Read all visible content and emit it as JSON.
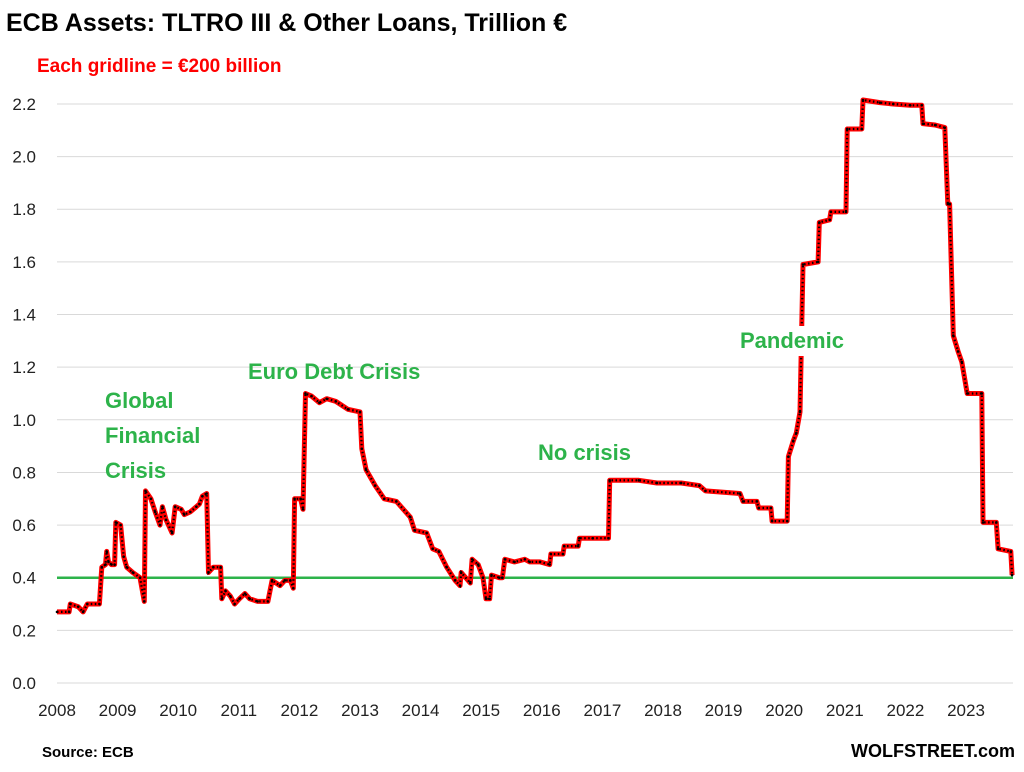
{
  "chart_data": {
    "type": "line",
    "title": "ECB Assets: TLTRO III & Other Loans, Trillion €",
    "subtitle": "Each gridline = €200 billion",
    "xlabel": "",
    "ylabel": "",
    "xlim": [
      2008,
      2023.8
    ],
    "ylim": [
      0,
      2.2
    ],
    "y_ticks": [
      "0.0",
      "0.2",
      "0.4",
      "0.6",
      "0.8",
      "1.0",
      "1.2",
      "1.4",
      "1.6",
      "1.8",
      "2.0",
      "2.2"
    ],
    "x_ticks": [
      "2008",
      "2009",
      "2010",
      "2011",
      "2012",
      "2013",
      "2014",
      "2015",
      "2016",
      "2017",
      "2018",
      "2019",
      "2020",
      "2021",
      "2022",
      "2023"
    ],
    "grid": true,
    "legend": "none",
    "colors": {
      "series": "#ff0000",
      "markers": "#000000",
      "reference_line": "#2db34a",
      "annotation": "#2db34a",
      "subtitle": "#ff0000"
    },
    "reference_line": 0.4,
    "series": [
      {
        "points": [
          [
            2008.0,
            0.27
          ],
          [
            2008.2,
            0.27
          ],
          [
            2008.22,
            0.3
          ],
          [
            2008.35,
            0.29
          ],
          [
            2008.43,
            0.27
          ],
          [
            2008.5,
            0.3
          ],
          [
            2008.7,
            0.3
          ],
          [
            2008.74,
            0.44
          ],
          [
            2008.8,
            0.45
          ],
          [
            2008.82,
            0.5
          ],
          [
            2008.85,
            0.46
          ],
          [
            2008.9,
            0.45
          ],
          [
            2008.95,
            0.45
          ],
          [
            2008.97,
            0.61
          ],
          [
            2009.05,
            0.6
          ],
          [
            2009.1,
            0.48
          ],
          [
            2009.15,
            0.44
          ],
          [
            2009.25,
            0.42
          ],
          [
            2009.37,
            0.4
          ],
          [
            2009.44,
            0.31
          ],
          [
            2009.46,
            0.73
          ],
          [
            2009.55,
            0.7
          ],
          [
            2009.62,
            0.65
          ],
          [
            2009.7,
            0.6
          ],
          [
            2009.74,
            0.67
          ],
          [
            2009.8,
            0.62
          ],
          [
            2009.9,
            0.57
          ],
          [
            2009.95,
            0.67
          ],
          [
            2010.05,
            0.66
          ],
          [
            2010.1,
            0.64
          ],
          [
            2010.2,
            0.65
          ],
          [
            2010.3,
            0.67
          ],
          [
            2010.35,
            0.68
          ],
          [
            2010.4,
            0.71
          ],
          [
            2010.47,
            0.72
          ],
          [
            2010.5,
            0.42
          ],
          [
            2010.58,
            0.44
          ],
          [
            2010.7,
            0.44
          ],
          [
            2010.72,
            0.32
          ],
          [
            2010.78,
            0.35
          ],
          [
            2010.86,
            0.33
          ],
          [
            2010.93,
            0.3
          ],
          [
            2011.01,
            0.32
          ],
          [
            2011.1,
            0.34
          ],
          [
            2011.18,
            0.32
          ],
          [
            2011.31,
            0.31
          ],
          [
            2011.48,
            0.31
          ],
          [
            2011.55,
            0.39
          ],
          [
            2011.68,
            0.37
          ],
          [
            2011.76,
            0.39
          ],
          [
            2011.85,
            0.39
          ],
          [
            2011.9,
            0.36
          ],
          [
            2011.92,
            0.7
          ],
          [
            2012.02,
            0.7
          ],
          [
            2012.06,
            0.66
          ],
          [
            2012.1,
            1.1
          ],
          [
            2012.2,
            1.09
          ],
          [
            2012.33,
            1.065
          ],
          [
            2012.45,
            1.08
          ],
          [
            2012.6,
            1.07
          ],
          [
            2012.8,
            1.04
          ],
          [
            2013.0,
            1.03
          ],
          [
            2013.03,
            0.89
          ],
          [
            2013.1,
            0.81
          ],
          [
            2013.25,
            0.75
          ],
          [
            2013.4,
            0.7
          ],
          [
            2013.6,
            0.69
          ],
          [
            2013.83,
            0.63
          ],
          [
            2013.9,
            0.58
          ],
          [
            2014.1,
            0.57
          ],
          [
            2014.2,
            0.51
          ],
          [
            2014.3,
            0.5
          ],
          [
            2014.43,
            0.44
          ],
          [
            2014.57,
            0.39
          ],
          [
            2014.65,
            0.37
          ],
          [
            2014.67,
            0.42
          ],
          [
            2014.82,
            0.38
          ],
          [
            2014.85,
            0.47
          ],
          [
            2014.95,
            0.45
          ],
          [
            2015.03,
            0.4
          ],
          [
            2015.08,
            0.32
          ],
          [
            2015.14,
            0.32
          ],
          [
            2015.17,
            0.41
          ],
          [
            2015.3,
            0.4
          ],
          [
            2015.35,
            0.4
          ],
          [
            2015.39,
            0.47
          ],
          [
            2015.55,
            0.46
          ],
          [
            2015.72,
            0.47
          ],
          [
            2015.8,
            0.46
          ],
          [
            2015.97,
            0.46
          ],
          [
            2016.13,
            0.45
          ],
          [
            2016.15,
            0.49
          ],
          [
            2016.35,
            0.49
          ],
          [
            2016.37,
            0.52
          ],
          [
            2016.6,
            0.52
          ],
          [
            2016.62,
            0.55
          ],
          [
            2016.84,
            0.55
          ],
          [
            2017.1,
            0.55
          ],
          [
            2017.12,
            0.77
          ],
          [
            2017.6,
            0.77
          ],
          [
            2017.9,
            0.76
          ],
          [
            2018.3,
            0.76
          ],
          [
            2018.6,
            0.75
          ],
          [
            2018.7,
            0.73
          ],
          [
            2019.27,
            0.72
          ],
          [
            2019.32,
            0.69
          ],
          [
            2019.55,
            0.69
          ],
          [
            2019.58,
            0.665
          ],
          [
            2019.78,
            0.665
          ],
          [
            2019.8,
            0.615
          ],
          [
            2020.05,
            0.615
          ],
          [
            2020.07,
            0.86
          ],
          [
            2020.15,
            0.92
          ],
          [
            2020.2,
            0.95
          ],
          [
            2020.26,
            1.03
          ],
          [
            2020.31,
            1.59
          ],
          [
            2020.56,
            1.6
          ],
          [
            2020.58,
            1.75
          ],
          [
            2020.75,
            1.76
          ],
          [
            2020.77,
            1.79
          ],
          [
            2021.02,
            1.79
          ],
          [
            2021.04,
            2.105
          ],
          [
            2021.28,
            2.105
          ],
          [
            2021.3,
            2.215
          ],
          [
            2021.58,
            2.205
          ],
          [
            2021.8,
            2.2
          ],
          [
            2022.08,
            2.195
          ],
          [
            2022.27,
            2.195
          ],
          [
            2022.29,
            2.125
          ],
          [
            2022.49,
            2.12
          ],
          [
            2022.65,
            2.11
          ],
          [
            2022.7,
            1.82
          ],
          [
            2022.73,
            1.82
          ],
          [
            2022.79,
            1.32
          ],
          [
            2022.87,
            1.26
          ],
          [
            2022.93,
            1.22
          ],
          [
            2023.02,
            1.1
          ],
          [
            2023.26,
            1.1
          ],
          [
            2023.28,
            0.61
          ],
          [
            2023.5,
            0.61
          ],
          [
            2023.53,
            0.51
          ],
          [
            2023.74,
            0.5
          ],
          [
            2023.76,
            0.41
          ]
        ]
      }
    ],
    "annotations": [
      {
        "lines": [
          "Global",
          "Financial",
          "Crisis"
        ]
      },
      {
        "lines": [
          "Euro Debt Crisis"
        ]
      },
      {
        "lines": [
          "No crisis"
        ]
      },
      {
        "lines": [
          "Pandemic"
        ]
      }
    ],
    "source": "Source: ECB",
    "brand": "WOLFSTREET.com"
  }
}
